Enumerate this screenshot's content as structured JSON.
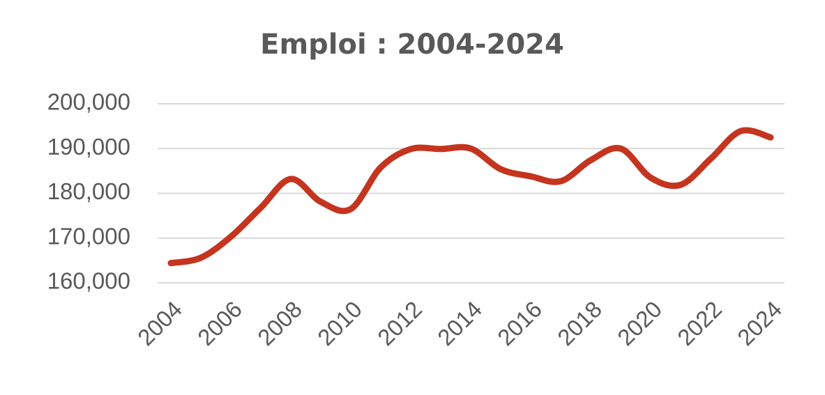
{
  "chart_data": {
    "type": "line",
    "title": "Emploi : 2004-2024",
    "x": [
      2004,
      2005,
      2006,
      2007,
      2008,
      2009,
      2010,
      2011,
      2012,
      2013,
      2014,
      2015,
      2016,
      2017,
      2018,
      2019,
      2020,
      2021,
      2022,
      2023,
      2024
    ],
    "series": [
      {
        "color": "#c5341e",
        "values": [
          164400,
          165600,
          170300,
          176800,
          183200,
          178100,
          176500,
          185800,
          189900,
          189900,
          190000,
          185400,
          183800,
          182700,
          187400,
          190000,
          183500,
          181900,
          187700,
          193900,
          192500
        ]
      }
    ],
    "xlim": [
      2004,
      2024
    ],
    "xticks": [
      2004,
      2006,
      2008,
      2010,
      2012,
      2014,
      2016,
      2018,
      2020,
      2022,
      2024
    ],
    "ylim": [
      160000,
      200000
    ],
    "yticks": [
      {
        "value": 160000,
        "label": "160,000"
      },
      {
        "value": 170000,
        "label": "170,000"
      },
      {
        "value": 180000,
        "label": "180,000"
      },
      {
        "value": 190000,
        "label": "190,000"
      },
      {
        "value": 200000,
        "label": "200,000"
      }
    ],
    "grid": true
  }
}
